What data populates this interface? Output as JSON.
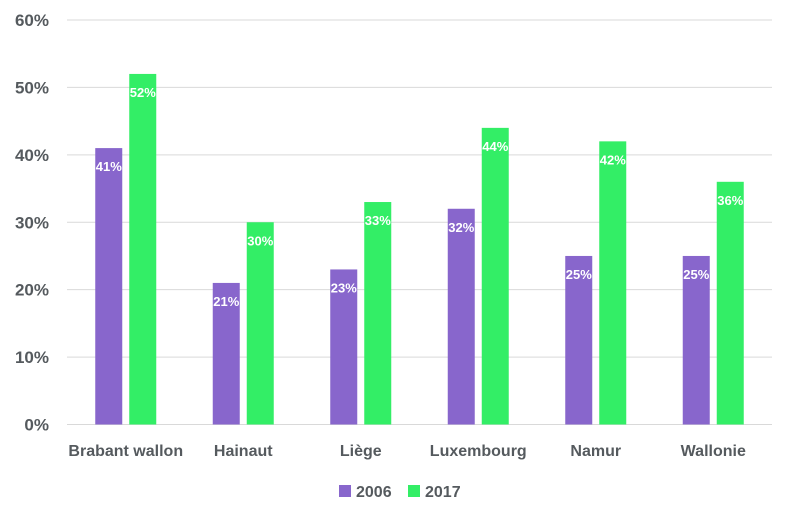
{
  "chart_data": {
    "type": "bar",
    "title": "",
    "xlabel": "",
    "ylabel": "",
    "ylim": [
      0,
      60
    ],
    "yticks": [
      "0%",
      "10%",
      "20%",
      "30%",
      "40%",
      "50%",
      "60%"
    ],
    "grid": true,
    "legend_position": "bottom",
    "categories": [
      "Brabant wallon",
      "Hainaut",
      "Liège",
      "Luxembourg",
      "Namur",
      "Wallonie"
    ],
    "series": [
      {
        "name": "2006",
        "color": "#8866cc",
        "values": [
          41,
          21,
          23,
          32,
          25,
          25
        ],
        "labels": [
          "41%",
          "21%",
          "23%",
          "32%",
          "25%",
          "25%"
        ]
      },
      {
        "name": "2017",
        "color": "#33ee66",
        "values": [
          52,
          30,
          33,
          44,
          42,
          36
        ],
        "labels": [
          "52%",
          "30%",
          "33%",
          "44%",
          "42%",
          "36%"
        ]
      }
    ]
  }
}
